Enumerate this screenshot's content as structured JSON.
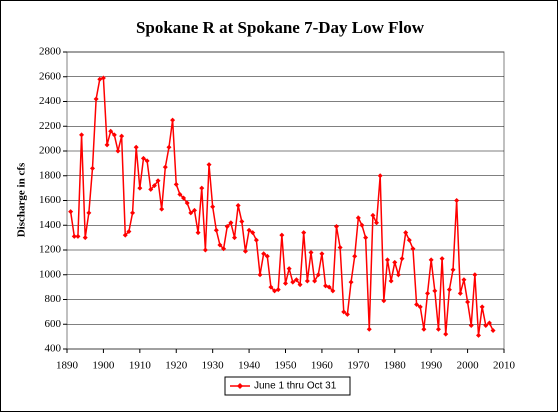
{
  "chart_data": {
    "type": "line",
    "title": "Spokane R at Spokane 7-Day Low Flow",
    "y_label": "Discharge in cfs",
    "x": [
      1891,
      1892,
      1893,
      1894,
      1895,
      1896,
      1897,
      1898,
      1899,
      1900,
      1901,
      1902,
      1903,
      1904,
      1905,
      1906,
      1907,
      1908,
      1909,
      1910,
      1911,
      1912,
      1913,
      1914,
      1915,
      1916,
      1917,
      1918,
      1919,
      1920,
      1921,
      1922,
      1923,
      1924,
      1925,
      1926,
      1927,
      1928,
      1929,
      1930,
      1931,
      1932,
      1933,
      1934,
      1935,
      1936,
      1937,
      1938,
      1939,
      1940,
      1941,
      1942,
      1943,
      1944,
      1945,
      1946,
      1947,
      1948,
      1949,
      1950,
      1951,
      1952,
      1953,
      1954,
      1955,
      1956,
      1957,
      1958,
      1959,
      1960,
      1961,
      1962,
      1963,
      1964,
      1965,
      1966,
      1967,
      1968,
      1969,
      1970,
      1971,
      1972,
      1973,
      1974,
      1975,
      1976,
      1977,
      1978,
      1979,
      1980,
      1981,
      1982,
      1983,
      1984,
      1985,
      1986,
      1987,
      1988,
      1989,
      1990,
      1991,
      1992,
      1993,
      1994,
      1995,
      1996,
      1997,
      1998,
      1999,
      2000,
      2001,
      2002,
      2003,
      2004,
      2005,
      2006,
      2007
    ],
    "series": [
      {
        "name": "June 1 thru Oct 31",
        "color": "#ff0000",
        "values": [
          1510,
          1310,
          1310,
          2130,
          1300,
          1500,
          1860,
          2420,
          2580,
          2590,
          2050,
          2160,
          2130,
          2000,
          2120,
          1320,
          1350,
          1500,
          2030,
          1700,
          1940,
          1920,
          1690,
          1720,
          1760,
          1530,
          1870,
          2030,
          2250,
          1730,
          1650,
          1620,
          1580,
          1500,
          1520,
          1340,
          1700,
          1200,
          1890,
          1550,
          1360,
          1240,
          1210,
          1390,
          1420,
          1300,
          1560,
          1430,
          1190,
          1360,
          1340,
          1280,
          1000,
          1170,
          1150,
          900,
          870,
          880,
          1320,
          930,
          1050,
          940,
          960,
          920,
          1340,
          950,
          1180,
          950,
          1000,
          1170,
          910,
          900,
          870,
          1390,
          1220,
          700,
          680,
          940,
          1150,
          1460,
          1400,
          1300,
          560,
          1480,
          1420,
          1800,
          790,
          1120,
          950,
          1100,
          1000,
          1130,
          1340,
          1280,
          1210,
          760,
          740,
          560,
          850,
          1120,
          870,
          560,
          1130,
          520,
          880,
          1040,
          1600,
          850,
          960,
          780,
          590,
          1000,
          510,
          740,
          590,
          610,
          550
        ]
      }
    ],
    "xlim": [
      1890,
      2010
    ],
    "xticks": [
      1890,
      1900,
      1910,
      1920,
      1930,
      1940,
      1950,
      1960,
      1970,
      1980,
      1990,
      2000,
      2010
    ],
    "ylim": [
      400,
      2800
    ],
    "yticks": [
      400,
      600,
      800,
      1000,
      1200,
      1400,
      1600,
      1800,
      2000,
      2200,
      2400,
      2600,
      2800
    ],
    "grid": true,
    "legend": "bottom"
  }
}
